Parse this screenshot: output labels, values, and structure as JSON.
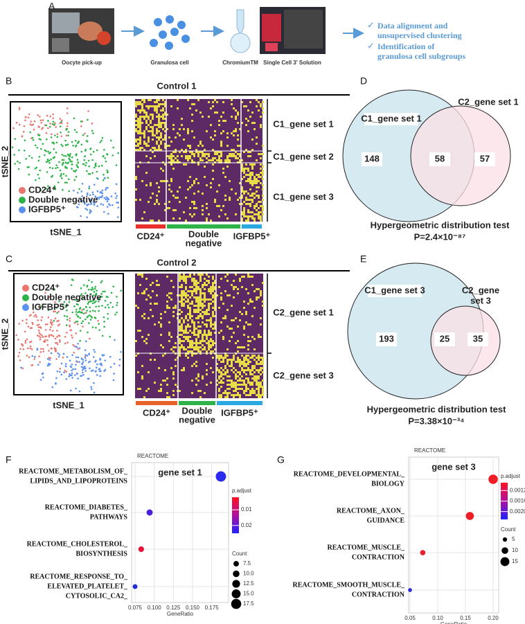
{
  "panel_labels": [
    "A",
    "B",
    "C",
    "D",
    "E",
    "F",
    "G"
  ],
  "workflow": {
    "steps": [
      "Oocyte pick-up",
      "Granulosa cell",
      "ChromiumTM",
      "Single Cell 3' Solution"
    ],
    "outcomes": [
      [
        "Data alignment and",
        "unsupervised clustering"
      ],
      [
        "Identification of",
        "granulosa cell subgroups"
      ]
    ]
  },
  "control1": {
    "title": "Control 1",
    "x_label": "tSNE_1",
    "y_label": "tSNE_2",
    "legend": [
      "CD24⁺",
      "Double negative",
      "IGFBP5⁺"
    ],
    "legend_colors": [
      "#e8766f",
      "#2db34a",
      "#5b8ff0"
    ],
    "gene_sets": [
      "C1_gene set 1",
      "C1_gene set 2",
      "C1_gene set 3"
    ],
    "columns": [
      [
        "CD24⁺"
      ],
      [
        "Double",
        "negative"
      ],
      [
        "IGFBP5⁺"
      ]
    ],
    "column_colors": [
      "#e8312a",
      "#2db34a",
      "#2aa8e0"
    ]
  },
  "control2": {
    "title": "Control 2",
    "x_label": "tSNE_1",
    "y_label": "tSNE_2",
    "legend": [
      "CD24⁺",
      "Double negative",
      "IGFBP5⁺"
    ],
    "legend_colors": [
      "#e8766f",
      "#2db34a",
      "#5b8ff0"
    ],
    "gene_sets": [
      "C2_gene set 1",
      "C2_gene set 3"
    ],
    "columns": [
      [
        "CD24⁺"
      ],
      [
        "Double",
        "negative"
      ],
      [
        "IGFBP5⁺"
      ]
    ],
    "column_colors": [
      "#e8602a",
      "#2db34a",
      "#2aa8e0"
    ]
  },
  "venn_d": {
    "left": "C1_gene set 1",
    "right": [
      "C2_gene set 1"
    ],
    "counts": [
      148,
      58,
      57
    ],
    "test": "Hypergeometric distribution test",
    "p": "P=2.4×10⁻⁸⁷"
  },
  "venn_e": {
    "left": "C1_gene set 3",
    "right": [
      "C2_gene",
      "set 3"
    ],
    "counts": [
      193,
      25,
      35
    ],
    "test": "Hypergeometric distribution test",
    "p": "P=3.38×10⁻³⁴"
  },
  "dotplot_f": {
    "type": "scatter",
    "title": "REACTOME",
    "subtitle": "gene set 1",
    "x_label": "GeneRatio",
    "categories": [
      [
        "REACTOME_METABOLISM_OF_",
        "LIPIDS_AND_LIPOPROTEINS"
      ],
      [
        "REACTOME_DIABETES_",
        "PATHWAYS"
      ],
      [
        "REACTOME_CHOLESTEROL_",
        "BIOSYNTHESIS"
      ],
      [
        "REACTOME_RESPONSE_TO_",
        "ELEVATED_PLATELET_",
        "CYTOSOLIC_CA2_"
      ]
    ],
    "x": [
      0.187,
      0.094,
      0.083,
      0.075
    ],
    "count": [
      18,
      9,
      8,
      6
    ],
    "colors": [
      "#2b2bf0",
      "#4a20d8",
      "#e8173a",
      "#2030d0"
    ],
    "xlim": [
      0.0705,
      0.197
    ],
    "xticks": [
      {
        "value": 0.075,
        "label": "0.075"
      },
      {
        "value": 0.1,
        "label": "0.100"
      },
      {
        "value": 0.125,
        "label": "0.125"
      },
      {
        "value": 0.15,
        "label": "0.150"
      },
      {
        "value": 0.175,
        "label": "0.175"
      }
    ],
    "color_title": "p.adjust",
    "color_lim": [
      0.002,
      0.025
    ],
    "color_ticks": [
      0.01,
      0.02
    ],
    "size_title": "Count",
    "size_ticks": [
      7.5,
      {
        "value": 10,
        "label": "10.0"
      },
      12.5,
      {
        "value": 15,
        "label": "15.0"
      },
      17.5
    ]
  },
  "dotplot_g": {
    "type": "scatter",
    "title": "REACTOME",
    "subtitle": "gene set 3",
    "x_label": "GeneRatio",
    "categories": [
      [
        "REACTOME_DEVELOPMENTAL_",
        "BIOLOGY"
      ],
      [
        "REACTOME_AXON_",
        "GUIDANCE"
      ],
      [
        "REACTOME_MUSCLE_",
        "CONTRACTION"
      ],
      [
        "REACTOME_SMOOTH_MUSCLE_",
        "CONTRACTION"
      ]
    ],
    "x": [
      0.2,
      0.158,
      0.073,
      0.05
    ],
    "count": [
      16,
      13,
      7,
      4
    ],
    "colors": [
      "#ee1c25",
      "#ee1c25",
      "#e8202a",
      "#2a2ad8"
    ],
    "xlim": [
      0.0475,
      0.21
    ],
    "xticks": [
      0.05,
      {
        "value": 0.1,
        "label": "0.10"
      },
      0.15,
      {
        "value": 0.2,
        "label": "0.20"
      }
    ],
    "color_title": "p.adjust",
    "color_lim": [
      0.0009,
      0.0023
    ],
    "color_ticks": [
      0.0012,
      0.0016,
      {
        "value": 0.002,
        "label": "0.0020"
      }
    ],
    "size_title": "Count",
    "size_ticks": [
      5,
      10,
      15
    ]
  }
}
